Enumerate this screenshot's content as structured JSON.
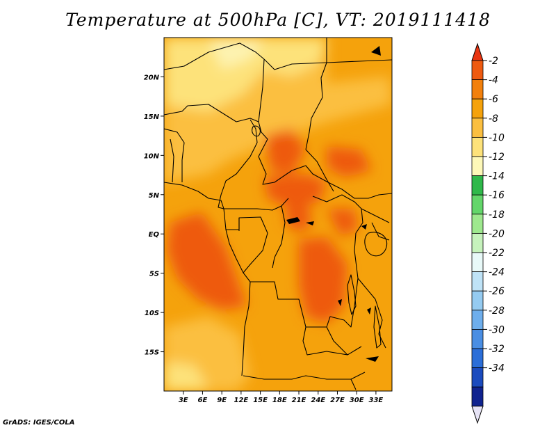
{
  "title": "Temperature at 500hPa [C], VT: 2019111418",
  "credit": "GrADS: IGES/COLA",
  "map": {
    "lon_range": [
      0,
      35.5
    ],
    "lat_range": [
      -20,
      25
    ],
    "lat_ticks": [
      {
        "value": 20,
        "label": "20N"
      },
      {
        "value": 15,
        "label": "15N"
      },
      {
        "value": 10,
        "label": "10N"
      },
      {
        "value": 5,
        "label": "5N"
      },
      {
        "value": 0,
        "label": "EQ"
      },
      {
        "value": -5,
        "label": "5S"
      },
      {
        "value": -10,
        "label": "10S"
      },
      {
        "value": -15,
        "label": "15S"
      }
    ],
    "lon_ticks": [
      {
        "value": 3,
        "label": "3E"
      },
      {
        "value": 6,
        "label": "6E"
      },
      {
        "value": 9,
        "label": "9E"
      },
      {
        "value": 12,
        "label": "12E"
      },
      {
        "value": 15,
        "label": "15E"
      },
      {
        "value": 18,
        "label": "18E"
      },
      {
        "value": 21,
        "label": "21E"
      },
      {
        "value": 24,
        "label": "24E"
      },
      {
        "value": 27,
        "label": "27E"
      },
      {
        "value": 30,
        "label": "30E"
      },
      {
        "value": 33,
        "label": "33E"
      }
    ]
  },
  "colorbar": {
    "labels": [
      "-2",
      "-4",
      "-6",
      "-8",
      "-10",
      "-12",
      "-14",
      "-16",
      "-18",
      "-20",
      "-22",
      "-24",
      "-26",
      "-28",
      "-30",
      "-32",
      "-34"
    ],
    "colors": [
      "#ee5a10",
      "#f2800c",
      "#f5a20c",
      "#fbbf40",
      "#fde27a",
      "#fdf8b8",
      "#2fb84a",
      "#63d66a",
      "#9ee88e",
      "#c6f2bc",
      "#e8f9f8",
      "#bfe3f7",
      "#95cbf1",
      "#6eaeec",
      "#4a8ee3",
      "#2b6ed8",
      "#1b4bbe",
      "#10238f"
    ],
    "top_color": "#e83410",
    "bottom_color": "#e6e3f5"
  }
}
